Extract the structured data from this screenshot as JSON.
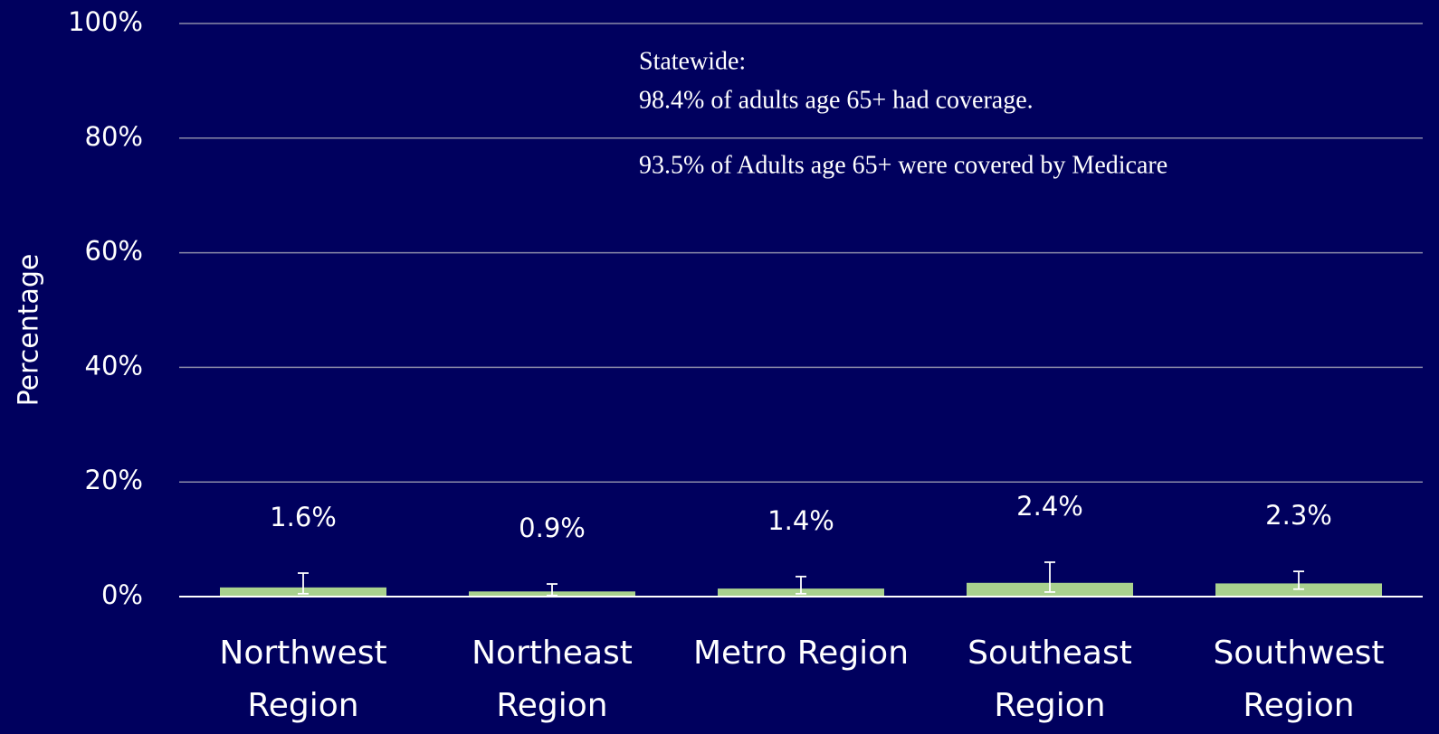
{
  "chart_data": {
    "type": "bar",
    "y_label": "Percentage",
    "annotations": [
      "Statewide:",
      "98.4% of adults age 65+ had coverage.",
      "93.5% of Adults age 65+ were covered by Medicare"
    ],
    "categories": [
      "Northwest Region",
      "Northeast Region",
      "Metro Region",
      "Southeast Region",
      "Southwest Region"
    ],
    "values": [
      1.6,
      0.9,
      1.4,
      2.4,
      2.3
    ],
    "value_labels": [
      "1.6%",
      "0.9%",
      "1.4%",
      "2.4%",
      "2.3%"
    ],
    "ci_lower": [
      0.5,
      0.2,
      0.5,
      0.8,
      1.3
    ],
    "ci_upper": [
      4.1,
      2.2,
      3.5,
      6.0,
      4.4
    ],
    "color": "#a9d18e",
    "error_color": "#ffffff",
    "ylim": [
      0,
      100
    ],
    "yticks": [
      {
        "value": 0,
        "label": "0%"
      },
      {
        "value": 20,
        "label": "20%"
      },
      {
        "value": 40,
        "label": "40%"
      },
      {
        "value": 60,
        "label": "60%"
      },
      {
        "value": 80,
        "label": "80%"
      },
      {
        "value": 100,
        "label": "100%"
      }
    ],
    "grid": true
  }
}
